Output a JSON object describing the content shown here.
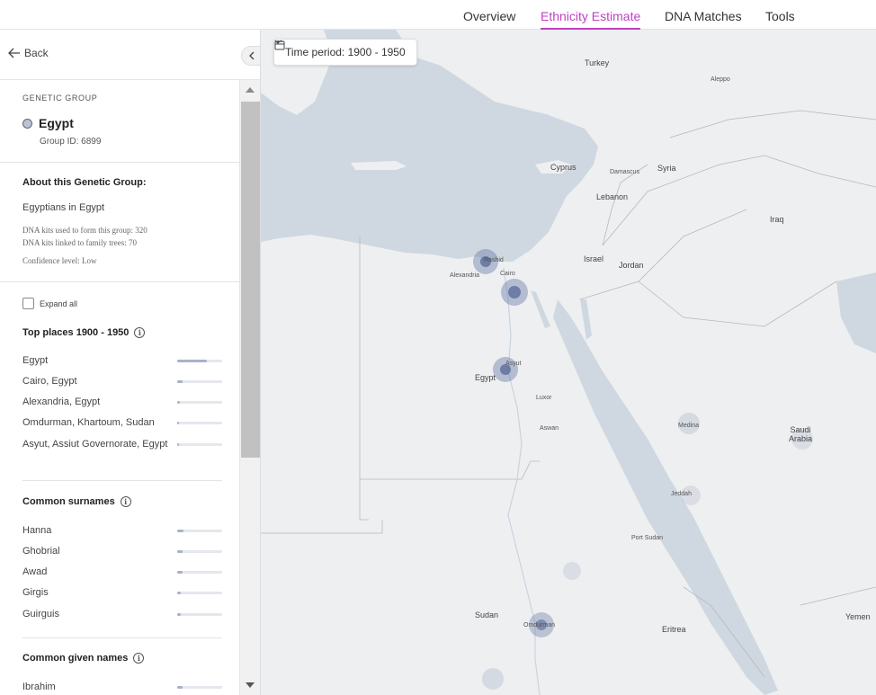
{
  "nav": {
    "tabs": [
      {
        "label": "Overview",
        "active": false
      },
      {
        "label": "Ethnicity Estimate",
        "active": true
      },
      {
        "label": "DNA Matches",
        "active": false
      },
      {
        "label": "Tools",
        "active": false
      }
    ]
  },
  "sidebar": {
    "back_label": "Back",
    "section_label": "GENETIC GROUP",
    "group_name": "Egypt",
    "group_id": "Group ID: 6899",
    "about_title": "About this Genetic Group:",
    "about_desc": "Egyptians in Egypt",
    "kits_used": "DNA kits used to form this group: 320",
    "kits_linked": "DNA kits linked to family trees: 70",
    "confidence": "Confidence level: Low",
    "expand_all": "Expand all",
    "top_places_heading": "Top places 1900 - 1950",
    "top_places": [
      {
        "label": "Egypt",
        "value": 0.65
      },
      {
        "label": "Cairo, Egypt",
        "value": 0.12
      },
      {
        "label": "Alexandria, Egypt",
        "value": 0.06
      },
      {
        "label": "Omdurman, Khartoum, Sudan",
        "value": 0.03
      },
      {
        "label": "Asyut, Assiut Governorate, Egypt",
        "value": 0.03
      }
    ],
    "surnames_heading": "Common surnames",
    "surnames": [
      {
        "label": "Hanna",
        "value": 0.14
      },
      {
        "label": "Ghobrial",
        "value": 0.12
      },
      {
        "label": "Awad",
        "value": 0.12
      },
      {
        "label": "Girgis",
        "value": 0.08
      },
      {
        "label": "Guirguis",
        "value": 0.08
      }
    ],
    "given_names_heading": "Common given names",
    "given_names": [
      {
        "label": "Ibrahim",
        "value": 0.12
      }
    ],
    "accent_color": "#c13fc5",
    "bar_color": "#a6b2c8"
  },
  "map": {
    "time_period_label": "Time period: 1900 - 1950",
    "countries": [
      "Turkey",
      "Syria",
      "Cyprus",
      "Lebanon",
      "Israel",
      "Jordan",
      "Iraq",
      "Egypt",
      "Saudi Arabia",
      "Sudan",
      "Eritrea",
      "Yemen"
    ],
    "cities": [
      "Cairo",
      "Alexandria",
      "Asyut",
      "Omdurman",
      "Medina",
      "Jeddah",
      "Aleppo",
      "Damascus",
      "Rashid",
      "Luxor",
      "Aswan",
      "Port Sudan"
    ]
  }
}
